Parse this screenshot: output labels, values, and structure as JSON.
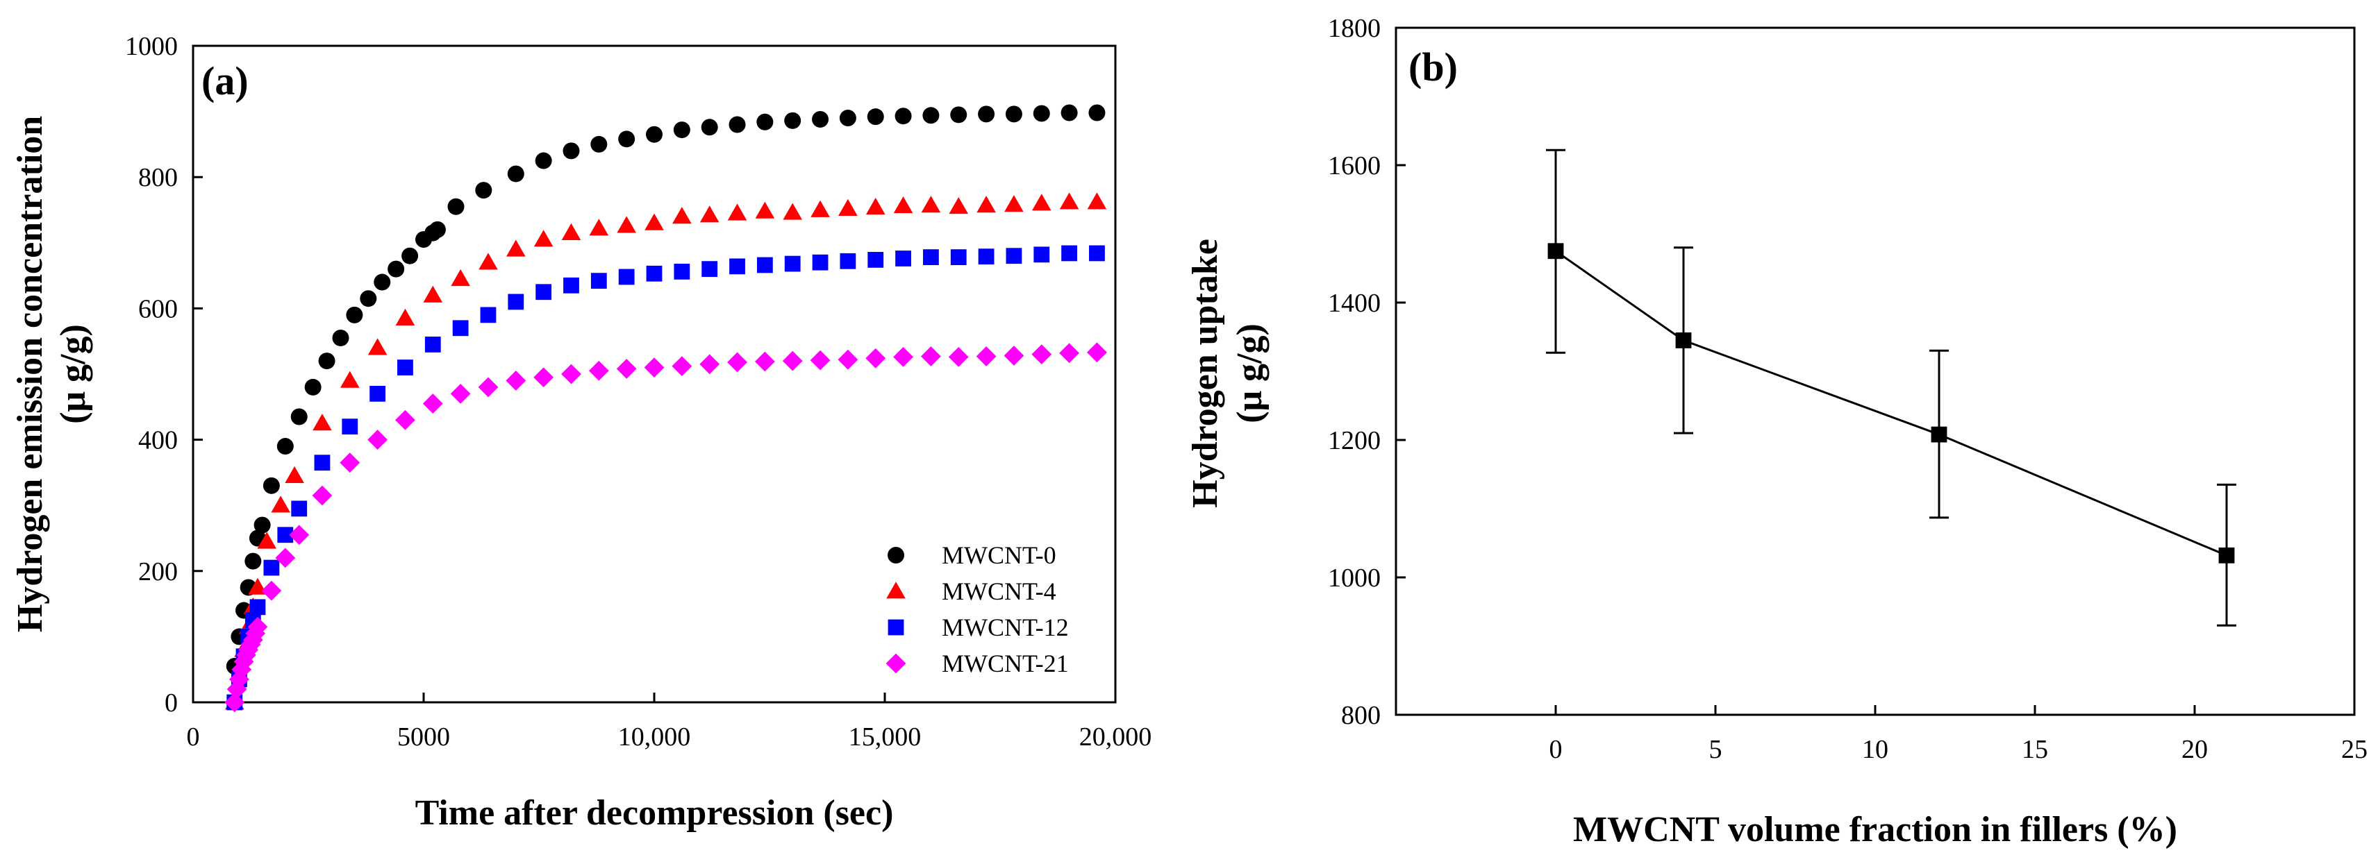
{
  "chart_data": [
    {
      "type": "scatter",
      "panel_label": "(a)",
      "title": "",
      "xlabel": "Time after decompression (sec)",
      "ylabel_line1": "Hydrogen emission concentration",
      "ylabel_line2": "(μ g/g)",
      "xlim": [
        0,
        20000
      ],
      "ylim": [
        0,
        1000
      ],
      "xticks": [
        0,
        5000,
        10000,
        15000,
        20000
      ],
      "xtick_labels": [
        "0",
        "5000",
        "10,000",
        "15,000",
        "20,000"
      ],
      "yticks": [
        0,
        200,
        400,
        600,
        800,
        1000
      ],
      "ytick_labels": [
        "0",
        "200",
        "400",
        "600",
        "800",
        "1000"
      ],
      "legend_position": "bottom-right",
      "series": [
        {
          "name": "MWCNT-0",
          "marker": "circle",
          "color": "#000000",
          "x": [
            900,
            1000,
            1100,
            1200,
            1300,
            1400,
            1500,
            1700,
            2000,
            2300,
            2600,
            2900,
            3200,
            3500,
            3800,
            4100,
            4400,
            4700,
            5000,
            5200,
            5300,
            5700,
            6300,
            7000,
            7600,
            8200,
            8800,
            9400,
            10000,
            10600,
            11200,
            11800,
            12400,
            13000,
            13600,
            14200,
            14800,
            15400,
            16000,
            16600,
            17200,
            17800,
            18400,
            19000,
            19600
          ],
          "y": [
            55,
            100,
            140,
            175,
            215,
            250,
            270,
            330,
            390,
            435,
            480,
            520,
            555,
            590,
            615,
            640,
            660,
            680,
            705,
            715,
            720,
            755,
            780,
            805,
            825,
            840,
            850,
            858,
            865,
            872,
            876,
            880,
            884,
            886,
            888,
            890,
            892,
            893,
            894,
            895,
            896,
            896,
            897,
            898,
            898
          ]
        },
        {
          "name": "MWCNT-4",
          "marker": "triangle",
          "color": "#ff0000",
          "x": [
            900,
            1000,
            1100,
            1200,
            1300,
            1400,
            1600,
            1900,
            2200,
            2800,
            3400,
            4000,
            4600,
            5200,
            5800,
            6400,
            7000,
            7600,
            8200,
            8800,
            9400,
            10000,
            10600,
            11200,
            11800,
            12400,
            13000,
            13600,
            14200,
            14800,
            15400,
            16000,
            16600,
            17200,
            17800,
            18400,
            19000,
            19600
          ],
          "y": [
            0,
            45,
            80,
            115,
            145,
            175,
            245,
            300,
            345,
            425,
            490,
            540,
            585,
            620,
            645,
            670,
            690,
            705,
            715,
            722,
            726,
            730,
            740,
            742,
            745,
            748,
            746,
            750,
            752,
            754,
            756,
            757,
            755,
            757,
            758,
            760,
            762,
            762
          ]
        },
        {
          "name": "MWCNT-12",
          "marker": "square",
          "color": "#0000ff",
          "x": [
            900,
            1000,
            1100,
            1200,
            1300,
            1400,
            1700,
            2000,
            2300,
            2800,
            3400,
            4000,
            4600,
            5200,
            5800,
            6400,
            7000,
            7600,
            8200,
            8800,
            9400,
            10000,
            10600,
            11200,
            11800,
            12400,
            13000,
            13600,
            14200,
            14800,
            15400,
            16000,
            16600,
            17200,
            17800,
            18400,
            19000,
            19600
          ],
          "y": [
            0,
            35,
            70,
            100,
            125,
            145,
            205,
            255,
            295,
            365,
            420,
            470,
            510,
            545,
            570,
            590,
            610,
            625,
            635,
            642,
            648,
            653,
            656,
            660,
            664,
            666,
            668,
            670,
            672,
            674,
            676,
            678,
            678,
            679,
            680,
            682,
            684,
            684
          ]
        },
        {
          "name": "MWCNT-21",
          "marker": "diamond",
          "color": "#ff00ff",
          "x": [
            900,
            950,
            1000,
            1050,
            1100,
            1150,
            1200,
            1250,
            1300,
            1350,
            1400,
            1700,
            2000,
            2300,
            2800,
            3400,
            4000,
            4600,
            5200,
            5800,
            6400,
            7000,
            7600,
            8200,
            8800,
            9400,
            10000,
            10600,
            11200,
            11800,
            12400,
            13000,
            13600,
            14200,
            14800,
            15400,
            16000,
            16600,
            17200,
            17800,
            18400,
            19000,
            19600
          ],
          "y": [
            0,
            20,
            35,
            50,
            62,
            72,
            80,
            88,
            95,
            105,
            115,
            170,
            220,
            255,
            315,
            365,
            400,
            430,
            455,
            470,
            480,
            490,
            495,
            500,
            505,
            508,
            510,
            512,
            515,
            518,
            519,
            520,
            521,
            522,
            524,
            526,
            527,
            526,
            527,
            528,
            530,
            532,
            533
          ]
        }
      ]
    },
    {
      "type": "line",
      "panel_label": "(b)",
      "title": "",
      "xlabel": "MWCNT volume fraction in fillers (%)",
      "ylabel_line1": "Hydrogen uptake",
      "ylabel_line2": "(μ g/g)",
      "xlim": [
        -5,
        25
      ],
      "ylim": [
        800,
        1800
      ],
      "xticks": [
        0,
        5,
        10,
        15,
        20,
        25
      ],
      "xtick_labels": [
        "0",
        "5",
        "10",
        "15",
        "20",
        "25"
      ],
      "yticks": [
        800,
        1000,
        1200,
        1400,
        1600,
        1800
      ],
      "ytick_labels": [
        "800",
        "1000",
        "1200",
        "1400",
        "1600",
        "1800"
      ],
      "series": [
        {
          "name": "Hydrogen uptake",
          "marker": "square",
          "color": "#000000",
          "x": [
            0,
            4,
            12,
            21
          ],
          "y": [
            1475,
            1345,
            1208,
            1032
          ],
          "err_high": [
            1622,
            1480,
            1330,
            1135
          ],
          "err_low": [
            1327,
            1210,
            1087,
            930
          ]
        }
      ]
    }
  ]
}
